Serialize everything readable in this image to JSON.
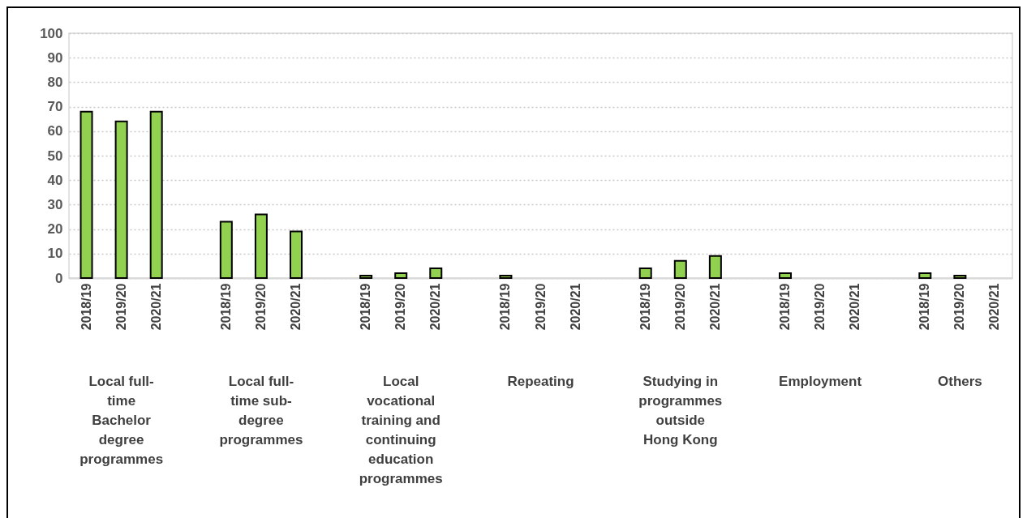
{
  "chart_data": {
    "type": "bar",
    "categories": [
      "2018/19",
      "2019/20",
      "2020/21",
      null,
      "2018/19",
      "2019/20",
      "2020/21",
      null,
      "2018/19",
      "2019/20",
      "2020/21",
      null,
      "2018/19",
      "2019/20",
      "2020/21",
      null,
      "2018/19",
      "2019/20",
      "2020/21",
      null,
      "2018/19",
      "2019/20",
      "2020/21",
      null,
      "2018/19",
      "2019/20",
      "2020/21"
    ],
    "values": [
      68,
      64,
      68,
      null,
      23,
      26,
      19,
      null,
      1,
      2,
      4,
      null,
      1,
      null,
      null,
      null,
      4,
      7,
      9,
      null,
      2,
      null,
      null,
      null,
      2,
      1,
      null
    ],
    "color": "#92d050",
    "ylim": [
      0,
      100
    ],
    "yticks": [
      0,
      10,
      20,
      30,
      40,
      50,
      60,
      70,
      80,
      90,
      100
    ],
    "grid": "y",
    "annotations": [
      "Local full-\ntime\nBachelor\ndegree\nprogrammes",
      "Local full-\ntime sub-\ndegree\nprogrammes",
      "Local\nvocational\ntraining and\ncontinuing\neducation\nprogrammes",
      "Repeating",
      "Studying in\nprogrammes\noutside\nHong Kong",
      "Employment",
      "Others"
    ]
  }
}
